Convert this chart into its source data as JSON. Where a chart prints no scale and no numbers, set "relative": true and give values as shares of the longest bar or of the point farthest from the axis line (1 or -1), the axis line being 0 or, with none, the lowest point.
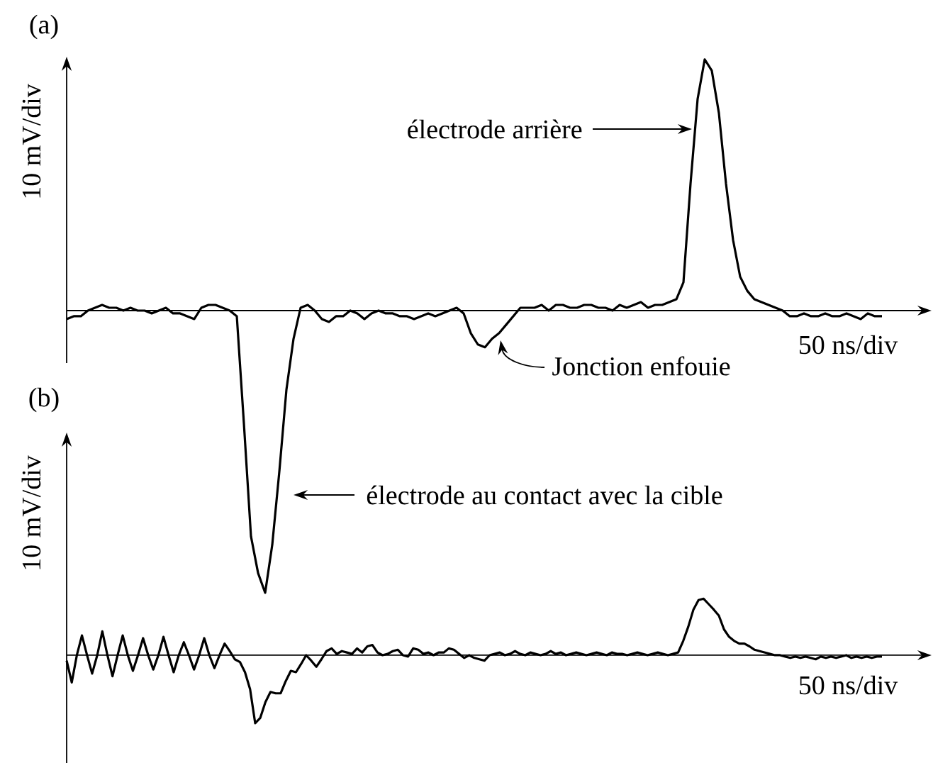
{
  "chart_data": [
    {
      "type": "line",
      "title": "(a)",
      "xlabel": "50 ns/div",
      "ylabel": "10 mV/div",
      "relative": true,
      "annotations": [
        "électrode arrière",
        "Jonction enfouie"
      ],
      "categories": [
        null,
        null,
        null,
        null,
        null,
        null,
        null,
        null,
        null,
        null,
        null,
        null,
        null,
        null,
        null,
        null,
        null,
        null,
        null,
        null,
        null,
        null,
        null,
        null,
        null,
        null,
        null,
        null,
        null,
        null,
        null,
        null,
        null,
        null,
        null,
        null,
        null,
        null,
        null,
        null,
        null,
        null,
        null,
        null,
        null,
        null,
        null,
        null,
        null,
        null,
        null,
        null,
        null,
        null,
        null,
        null,
        null,
        null,
        null,
        null,
        null,
        null,
        null,
        null,
        null,
        null,
        null,
        null,
        null,
        null,
        null,
        null,
        null,
        null,
        null,
        null,
        null,
        null,
        null,
        null,
        null,
        null,
        null,
        null,
        null,
        null,
        null,
        null,
        null,
        null,
        null,
        null,
        null,
        null,
        null,
        null,
        null,
        null,
        null,
        null,
        null,
        null,
        null,
        null,
        null,
        null,
        null,
        null,
        null,
        null,
        null,
        null,
        null,
        null,
        null,
        null
      ],
      "series": [
        {
          "color": "#000000",
          "values": [
            -0.03,
            -0.02,
            -0.02,
            0,
            0.01,
            0.02,
            0.01,
            0.01,
            0,
            0.01,
            0,
            0,
            -0.01,
            0,
            0.01,
            -0.01,
            -0.01,
            -0.02,
            -0.03,
            0.01,
            0.02,
            0.02,
            0.01,
            0,
            -0.02,
            -0.4,
            -0.8,
            -0.93,
            -1,
            -0.83,
            -0.57,
            -0.28,
            -0.1,
            0.01,
            0.02,
            0,
            -0.03,
            -0.04,
            -0.02,
            -0.02,
            0,
            -0.01,
            -0.03,
            -0.01,
            0,
            -0.01,
            -0.01,
            -0.02,
            -0.02,
            -0.03,
            -0.02,
            -0.01,
            -0.02,
            -0.01,
            0,
            0.01,
            -0.01,
            -0.08,
            -0.12,
            -0.13,
            -0.1,
            -0.08,
            -0.05,
            -0.02,
            0.01,
            0.01,
            0.01,
            0.02,
            0,
            0.02,
            0.02,
            0.01,
            0.01,
            0.02,
            0.02,
            0.01,
            0.01,
            0,
            0.02,
            0.01,
            0.02,
            0.03,
            0.01,
            0.02,
            0.02,
            0.03,
            0.04,
            0.1,
            0.45,
            0.75,
            0.89,
            0.85,
            0.7,
            0.45,
            0.25,
            0.12,
            0.07,
            0.04,
            0.03,
            0.02,
            0.01,
            0,
            -0.02,
            -0.02,
            -0.01,
            -0.02,
            -0.02,
            -0.01,
            -0.02,
            -0.02,
            -0.01,
            -0.02,
            -0.03,
            -0.01,
            -0.02,
            -0.02
          ]
        }
      ]
    },
    {
      "type": "line",
      "title": "(b)",
      "xlabel": "50 ns/div",
      "ylabel": "10 mV/div",
      "relative": true,
      "annotations": [
        "électrode au contact avec la cible"
      ],
      "categories": [
        null,
        null,
        null,
        null,
        null,
        null,
        null,
        null,
        null,
        null,
        null,
        null,
        null,
        null,
        null,
        null,
        null,
        null,
        null,
        null,
        null,
        null,
        null,
        null,
        null,
        null,
        null,
        null,
        null,
        null,
        null,
        null,
        null,
        null,
        null,
        null,
        null,
        null,
        null,
        null,
        null,
        null,
        null,
        null,
        null,
        null,
        null,
        null,
        null,
        null,
        null,
        null,
        null,
        null,
        null,
        null,
        null,
        null,
        null,
        null,
        null,
        null,
        null,
        null,
        null,
        null,
        null,
        null,
        null,
        null,
        null,
        null,
        null,
        null,
        null,
        null,
        null,
        null,
        null,
        null,
        null,
        null,
        null,
        null,
        null,
        null,
        null,
        null,
        null,
        null,
        null,
        null,
        null,
        null,
        null,
        null,
        null,
        null,
        null,
        null,
        null,
        null,
        null,
        null,
        null,
        null,
        null,
        null,
        null,
        null,
        null,
        null,
        null,
        null,
        null,
        null,
        null,
        null,
        null,
        null,
        null,
        null,
        null,
        null,
        null,
        null,
        null,
        null,
        null,
        null,
        null,
        null,
        null,
        null,
        null,
        null,
        null,
        null,
        null,
        null,
        null,
        null,
        null,
        null,
        null,
        null,
        null,
        null,
        null,
        null,
        null,
        null,
        null,
        null,
        null,
        null,
        null,
        null,
        null,
        null,
        null
      ],
      "series": [
        {
          "color": "#000000",
          "values": [
            -0.08,
            -0.4,
            0,
            0.29,
            0,
            -0.27,
            0,
            0.35,
            0,
            -0.31,
            0,
            0.29,
            0,
            -0.23,
            0,
            0.25,
            0,
            -0.21,
            0,
            0.27,
            0,
            -0.25,
            0,
            0.19,
            0,
            -0.21,
            0,
            0.25,
            0,
            -0.19,
            0,
            0.17,
            0.06,
            -0.06,
            -0.1,
            -0.25,
            -0.5,
            -1,
            -0.92,
            -0.69,
            -0.54,
            -0.56,
            -0.56,
            -0.38,
            -0.23,
            -0.25,
            -0.13,
            0,
            -0.08,
            -0.17,
            -0.06,
            0.06,
            0.1,
            0.02,
            0.06,
            0.04,
            0.02,
            0.1,
            0.04,
            0.13,
            0.15,
            0.04,
            0,
            0.02,
            0.06,
            0.08,
            0,
            -0.02,
            0.1,
            0.08,
            0.02,
            0.04,
            0,
            0.04,
            0.04,
            0.1,
            0.08,
            0.02,
            -0.04,
            0,
            -0.04,
            -0.06,
            -0.08,
            0,
            0.02,
            0.04,
            0,
            0.02,
            0.06,
            0.02,
            0,
            0.04,
            0.02,
            0,
            0.02,
            0.06,
            0.02,
            0.04,
            0,
            0.02,
            0.04,
            0.02,
            0,
            0.02,
            0.04,
            0.02,
            0,
            0.04,
            0.02,
            0.02,
            0,
            0.02,
            0.04,
            0.02,
            0,
            0.02,
            0.04,
            0.02,
            0,
            0.02,
            0.04,
            0.21,
            0.42,
            0.67,
            0.81,
            0.83,
            0.75,
            0.67,
            0.58,
            0.38,
            0.27,
            0.21,
            0.17,
            0.17,
            0.13,
            0.08,
            0.06,
            0.04,
            0.02,
            0,
            0,
            -0.02,
            -0.04,
            -0.02,
            -0.04,
            -0.02,
            -0.04,
            -0.06,
            -0.02,
            -0.04,
            -0.02,
            -0.04,
            -0.02,
            0,
            -0.04,
            -0.02,
            -0.04,
            -0.02,
            -0.04,
            -0.02,
            -0.02
          ]
        }
      ]
    }
  ]
}
